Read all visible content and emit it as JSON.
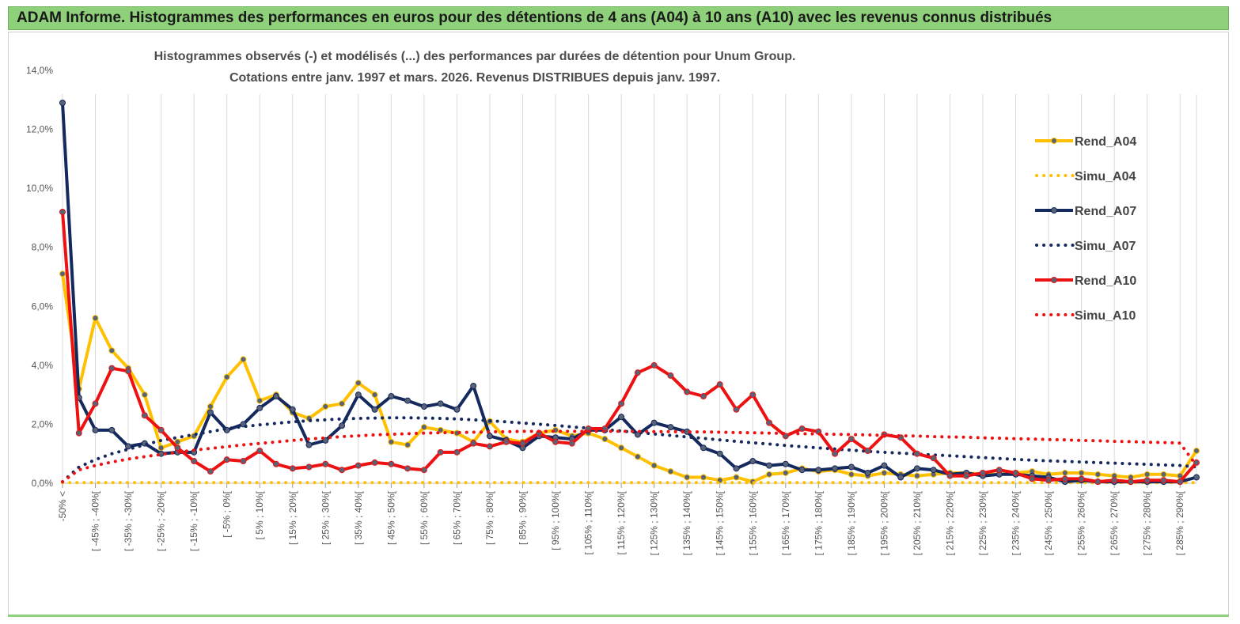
{
  "header": {
    "title": "ADAM Informe. Histogrammes des performances en euros pour des détentions de 4 ans (A04) à 10 ans (A10) avec les revenus connus distribués"
  },
  "chart_data": {
    "type": "line",
    "title_line1": "Histogrammes observés (-) et modélisés (...) des performances par durées de détention pour Unum Group.",
    "title_line2": "Cotations entre janv. 1997 et mars. 2026. Revenus DISTRIBUES depuis janv. 1997.",
    "ylim": [
      0,
      14
    ],
    "yticks": [
      "0,0%",
      "2,0%",
      "4,0%",
      "6,0%",
      "8,0%",
      "10,0%",
      "12,0%",
      "14,0%"
    ],
    "grid": "vertical",
    "legend_position": "right",
    "xticklabels": [
      "-50% <",
      "[ -45% ; -40%[",
      "[ -35% ; -30%[",
      "[ -25% ; -20%[",
      "[ -15% ; -10%[",
      "[ -5% ; 0%[",
      "[ 5% ; 10%[",
      "[ 15% ; 20%[",
      "[ 25% ; 30%[",
      "[ 35% ; 40%[",
      "[ 45% ; 50%[",
      "[ 55% ; 60%[",
      "[ 65% ; 70%[",
      "[ 75% ; 80%[",
      "[ 85% ; 90%[",
      "[ 95% ; 100%[",
      "[ 105% ; 110%[",
      "[ 115% ; 120%[",
      "[ 125% ; 130%[",
      "[ 135% ; 140%[",
      "[ 145% ; 150%[",
      "[ 155% ; 160%[",
      "[ 165% ; 170%[",
      "[ 175% ; 180%[",
      "[ 185% ; 190%[",
      "[ 195% ; 200%[",
      "[ 205% ; 210%[",
      "[ 215% ; 220%[",
      "[ 225% ; 230%[",
      "[ 235% ; 240%[",
      "[ 245% ; 250%[",
      "[ 255% ; 260%[",
      "[ 265% ; 270%[",
      "[ 275% ; 280%[",
      "[ 285% ; 290%["
    ],
    "series": [
      {
        "name": "Rend_A04",
        "color": "#ffc000",
        "style": "solid",
        "values": [
          7.1,
          3.2,
          5.6,
          4.5,
          3.9,
          3.0,
          1.2,
          1.4,
          1.6,
          2.6,
          3.6,
          4.2,
          2.8,
          3.0,
          2.4,
          2.2,
          2.6,
          2.7,
          3.4,
          3.0,
          1.4,
          1.3,
          1.9,
          1.8,
          1.7,
          1.4,
          2.1,
          1.5,
          1.4,
          1.7,
          1.8,
          1.6,
          1.7,
          1.5,
          1.2,
          0.9,
          0.6,
          0.4,
          0.2,
          0.2,
          0.1,
          0.2,
          0.05,
          0.3,
          0.35,
          0.5,
          0.4,
          0.45,
          0.3,
          0.25,
          0.35,
          0.3,
          0.25,
          0.3,
          0.35,
          0.35,
          0.3,
          0.3,
          0.35,
          0.4,
          0.3,
          0.35,
          0.35,
          0.3,
          0.25,
          0.2,
          0.3,
          0.3,
          0.25,
          1.1
        ]
      },
      {
        "name": "Simu_A04",
        "color": "#ffc000",
        "style": "dotted",
        "values": [
          0.02,
          0.02,
          0.02,
          0.02,
          0.02,
          0.02,
          0.02,
          0.02,
          0.02,
          0.02,
          0.02,
          0.02,
          0.02,
          0.02,
          0.02,
          0.02,
          0.02,
          0.02,
          0.02,
          0.02,
          0.02,
          0.02,
          0.02,
          0.02,
          0.02,
          0.02,
          0.02,
          0.02,
          0.02,
          0.02,
          0.02,
          0.02,
          0.02,
          0.02,
          0.02,
          0.02,
          0.02,
          0.02,
          0.02,
          0.02,
          0.02,
          0.02,
          0.02,
          0.02,
          0.02,
          0.02,
          0.02,
          0.02,
          0.02,
          0.02,
          0.02,
          0.02,
          0.02,
          0.02,
          0.02,
          0.02,
          0.02,
          0.02,
          0.02,
          0.02,
          0.02,
          0.02,
          0.02,
          0.02,
          0.02,
          0.02,
          0.02,
          0.02,
          0.02,
          0.02
        ]
      },
      {
        "name": "Rend_A07",
        "color": "#14295e",
        "style": "solid",
        "values": [
          12.9,
          2.9,
          1.8,
          1.8,
          1.25,
          1.35,
          1.0,
          1.05,
          1.05,
          2.4,
          1.8,
          2.0,
          2.55,
          2.95,
          2.5,
          1.3,
          1.45,
          1.95,
          3.0,
          2.5,
          2.95,
          2.8,
          2.6,
          2.7,
          2.5,
          3.3,
          1.6,
          1.45,
          1.2,
          1.6,
          1.55,
          1.5,
          1.8,
          1.8,
          2.25,
          1.65,
          2.05,
          1.9,
          1.75,
          1.2,
          1.0,
          0.5,
          0.75,
          0.6,
          0.65,
          0.45,
          0.45,
          0.5,
          0.55,
          0.35,
          0.6,
          0.2,
          0.5,
          0.45,
          0.3,
          0.35,
          0.25,
          0.3,
          0.3,
          0.25,
          0.2,
          0.05,
          0.1,
          0.05,
          0.05,
          0.05,
          0.05,
          0.05,
          0.05,
          0.2
        ]
      },
      {
        "name": "Simu_A07",
        "color": "#14295e",
        "style": "dotted",
        "values": [
          0.05,
          0.55,
          0.8,
          1.0,
          1.15,
          1.3,
          1.45,
          1.55,
          1.65,
          1.75,
          1.85,
          1.92,
          1.98,
          2.03,
          2.08,
          2.12,
          2.15,
          2.18,
          2.2,
          2.21,
          2.22,
          2.22,
          2.21,
          2.2,
          2.18,
          2.15,
          2.12,
          2.08,
          2.04,
          2.0,
          1.96,
          1.91,
          1.87,
          1.82,
          1.77,
          1.72,
          1.67,
          1.62,
          1.57,
          1.52,
          1.47,
          1.42,
          1.37,
          1.33,
          1.28,
          1.24,
          1.2,
          1.16,
          1.12,
          1.08,
          1.05,
          1.02,
          0.99,
          0.96,
          0.93,
          0.9,
          0.87,
          0.84,
          0.81,
          0.78,
          0.76,
          0.74,
          0.72,
          0.7,
          0.68,
          0.66,
          0.64,
          0.62,
          0.6,
          0.55
        ]
      },
      {
        "name": "Rend_A10",
        "color": "#ee1111",
        "style": "solid",
        "values": [
          9.2,
          1.7,
          2.7,
          3.9,
          3.8,
          2.3,
          1.8,
          1.2,
          0.75,
          0.4,
          0.8,
          0.75,
          1.1,
          0.65,
          0.5,
          0.55,
          0.65,
          0.45,
          0.6,
          0.7,
          0.65,
          0.5,
          0.45,
          1.05,
          1.05,
          1.35,
          1.25,
          1.4,
          1.35,
          1.7,
          1.4,
          1.35,
          1.85,
          1.85,
          2.7,
          3.75,
          4.0,
          3.65,
          3.1,
          2.95,
          3.35,
          2.5,
          3.0,
          2.05,
          1.6,
          1.85,
          1.75,
          1.0,
          1.5,
          1.1,
          1.65,
          1.55,
          1.0,
          0.85,
          0.25,
          0.25,
          0.35,
          0.45,
          0.35,
          0.15,
          0.1,
          0.15,
          0.15,
          0.05,
          0.1,
          0.05,
          0.1,
          0.1,
          0.05,
          0.7
        ]
      },
      {
        "name": "Simu_A10",
        "color": "#ee1111",
        "style": "dotted",
        "values": [
          0.05,
          0.45,
          0.6,
          0.72,
          0.82,
          0.9,
          0.98,
          1.05,
          1.12,
          1.18,
          1.24,
          1.3,
          1.35,
          1.4,
          1.45,
          1.5,
          1.54,
          1.58,
          1.61,
          1.64,
          1.66,
          1.68,
          1.7,
          1.71,
          1.72,
          1.73,
          1.74,
          1.75,
          1.76,
          1.76,
          1.76,
          1.76,
          1.76,
          1.76,
          1.76,
          1.76,
          1.75,
          1.75,
          1.74,
          1.74,
          1.73,
          1.72,
          1.71,
          1.7,
          1.69,
          1.68,
          1.67,
          1.66,
          1.65,
          1.64,
          1.62,
          1.61,
          1.6,
          1.58,
          1.57,
          1.56,
          1.54,
          1.53,
          1.51,
          1.5,
          1.48,
          1.47,
          1.45,
          1.44,
          1.42,
          1.41,
          1.39,
          1.38,
          1.36,
          0.6
        ]
      }
    ]
  }
}
